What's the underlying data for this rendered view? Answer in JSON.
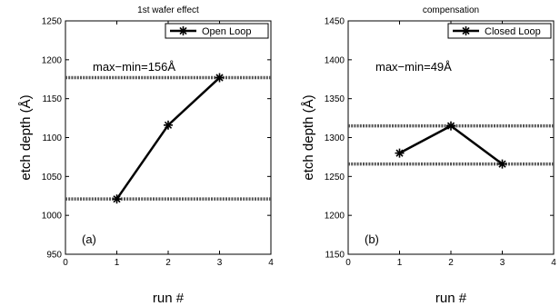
{
  "chart_data": [
    {
      "type": "line",
      "title": "1st wafer effect",
      "xlabel": "run #",
      "ylabel": "etch depth (Å)",
      "xlim": [
        0,
        4
      ],
      "ylim": [
        950,
        1250
      ],
      "xticks": [
        "0",
        "1",
        "2",
        "3",
        "4"
      ],
      "yticks": [
        "950",
        "1000",
        "1050",
        "1100",
        "1150",
        "1200",
        "1250"
      ],
      "xtick_values": [
        0,
        1,
        2,
        3,
        4
      ],
      "ytick_values": [
        950,
        1000,
        1050,
        1100,
        1150,
        1200,
        1250
      ],
      "series": [
        {
          "name": "Open Loop",
          "x": [
            1,
            2,
            3
          ],
          "y": [
            1021,
            1116,
            1177
          ],
          "marker": "star",
          "color": "#000000"
        }
      ],
      "reference_lines": [
        1177,
        1021
      ],
      "annotation": "max−min=156Å",
      "panel_label": "(a)",
      "legend_position": "top-right",
      "grid": false
    },
    {
      "type": "line",
      "title": "compensation",
      "xlabel": "run #",
      "ylabel": "etch depth (Å)",
      "xlim": [
        0,
        4
      ],
      "ylim": [
        1150,
        1450
      ],
      "xticks": [
        "0",
        "1",
        "2",
        "3",
        "4"
      ],
      "yticks": [
        "1150",
        "1200",
        "1250",
        "1300",
        "1350",
        "1400",
        "1450"
      ],
      "xtick_values": [
        0,
        1,
        2,
        3,
        4
      ],
      "ytick_values": [
        1150,
        1200,
        1250,
        1300,
        1350,
        1400,
        1450
      ],
      "series": [
        {
          "name": "Closed Loop",
          "x": [
            1,
            2,
            3
          ],
          "y": [
            1280,
            1315,
            1266
          ],
          "marker": "star",
          "color": "#000000"
        }
      ],
      "reference_lines": [
        1315,
        1266
      ],
      "annotation": "max−min=49Å",
      "panel_label": "(b)",
      "legend_position": "top-right",
      "grid": false
    }
  ]
}
